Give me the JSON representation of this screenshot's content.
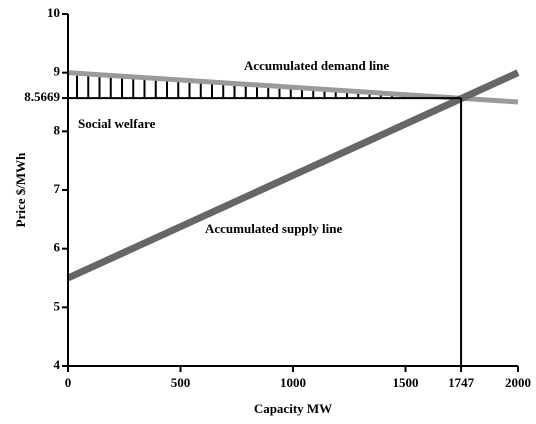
{
  "chart_data": {
    "type": "line",
    "x_label": "Capacity MW",
    "y_label": "Price $/MWh",
    "x": [
      0,
      2000
    ],
    "series": [
      {
        "name": "Accumulated demand line",
        "color": "#9a9a9a",
        "values": [
          9.0,
          8.5
        ]
      },
      {
        "name": "Accumulated supply line",
        "color": "#666666",
        "values": [
          5.5,
          9.0
        ]
      }
    ],
    "annotations": [
      "Accumulated demand line",
      "Social welfare",
      "Accumulated supply line"
    ],
    "equilibrium": {
      "x": 1747,
      "y": 8.5669
    },
    "xlim": [
      0,
      2000
    ],
    "xticks": [
      0,
      500,
      1000,
      1500,
      1747,
      2000
    ],
    "ylim": [
      4,
      10
    ],
    "yticks": [
      4,
      5,
      6,
      7,
      8,
      {
        "value": 8.5669,
        "label": "8.5669"
      },
      9,
      10
    ],
    "grid": false
  }
}
